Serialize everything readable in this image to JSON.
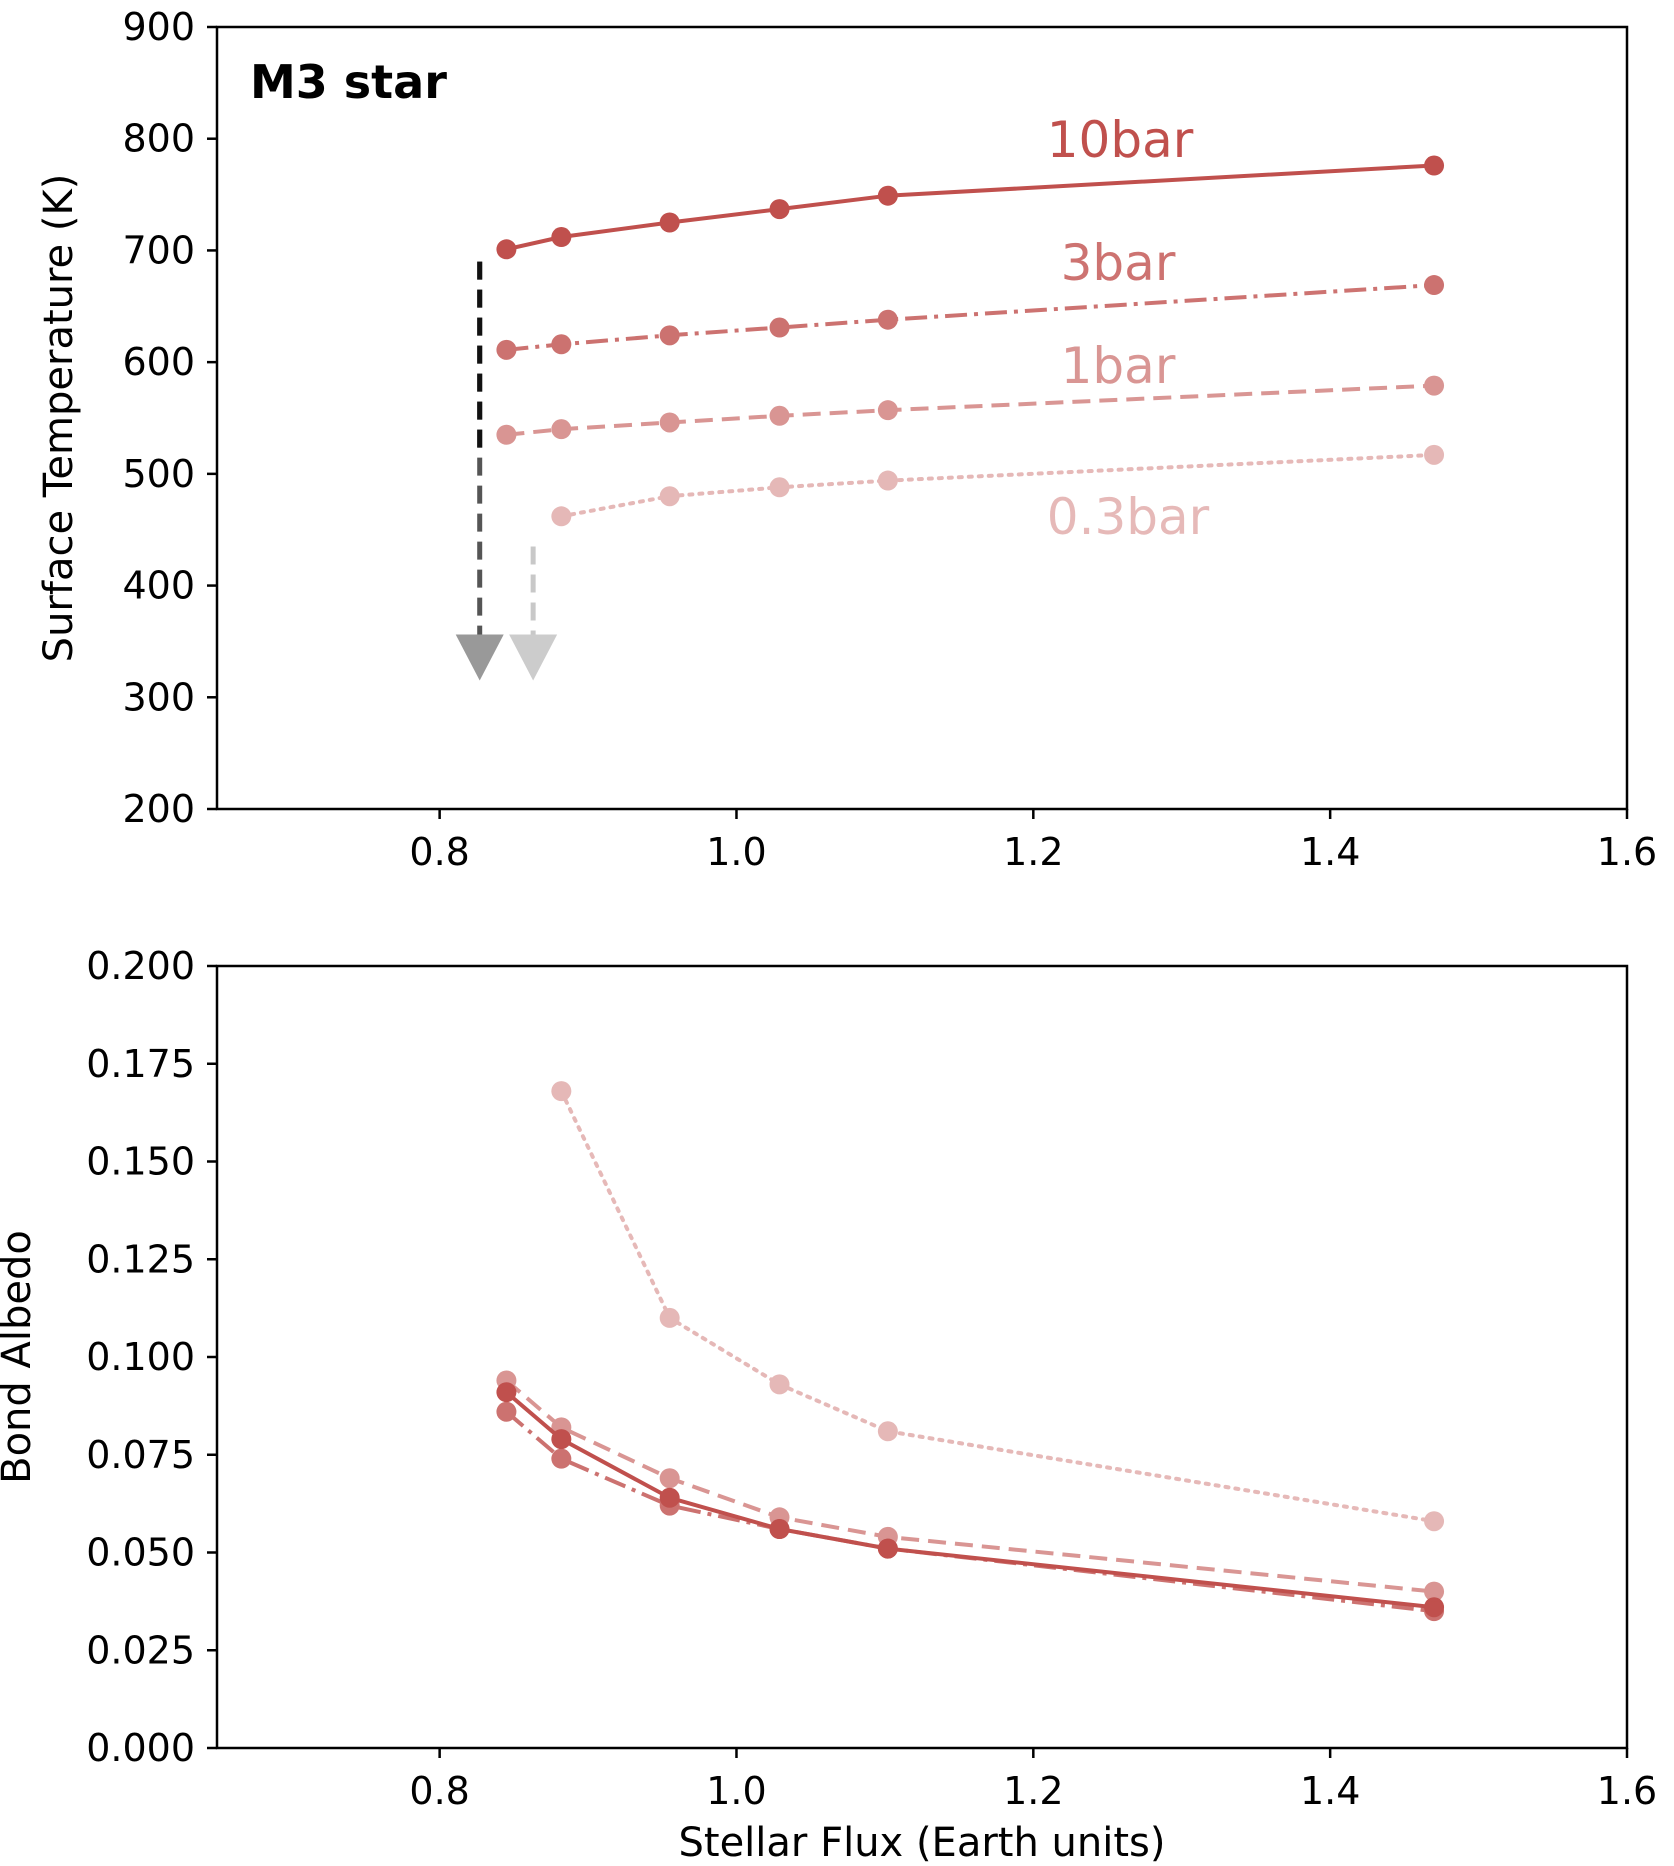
{
  "chart_data": [
    {
      "type": "line",
      "title": "M3 star",
      "xlabel": "",
      "ylabel": "Surface Temperature (K)",
      "xlim": [
        0.65,
        1.6
      ],
      "ylim": [
        200,
        900
      ],
      "xticks": [
        "0.8",
        "1.0",
        "1.2",
        "1.4",
        "1.6"
      ],
      "yticks": [
        "200",
        "300",
        "400",
        "500",
        "600",
        "700",
        "800",
        "900"
      ],
      "series": [
        {
          "name": "10bar",
          "label": "10bar",
          "color": "#c0504d",
          "alpha": 1.0,
          "dash": "solid",
          "x": [
            0.845,
            0.882,
            0.955,
            1.029,
            1.102,
            1.47
          ],
          "y": [
            701,
            712,
            725,
            737,
            749,
            776
          ]
        },
        {
          "name": "3bar",
          "label": "3bar",
          "color": "#c0504d",
          "alpha": 0.8,
          "dash": "dashdot",
          "x": [
            0.845,
            0.882,
            0.955,
            1.029,
            1.102,
            1.47
          ],
          "y": [
            611,
            616,
            624,
            631,
            638,
            669
          ]
        },
        {
          "name": "1bar",
          "label": "1bar",
          "color": "#c0504d",
          "alpha": 0.6,
          "dash": "dashed",
          "x": [
            0.845,
            0.882,
            0.955,
            1.029,
            1.102,
            1.47
          ],
          "y": [
            535,
            540,
            546,
            552,
            557,
            579
          ]
        },
        {
          "name": "0.3bar",
          "label": "0.3bar",
          "color": "#c0504d",
          "alpha": 0.4,
          "dash": "dotted",
          "x": [
            0.882,
            0.955,
            1.029,
            1.102,
            1.47
          ],
          "y": [
            462,
            480,
            488,
            494,
            517
          ]
        }
      ],
      "annotations": [
        {
          "type": "arrow",
          "from": [
            0.827,
            690
          ],
          "to": [
            0.827,
            315
          ],
          "color_start": "#000000",
          "color_end": "#999999"
        },
        {
          "type": "arrow",
          "from": [
            0.863,
            435
          ],
          "to": [
            0.863,
            315
          ],
          "color_start": "#c8c8c8",
          "color_end": "#cccccc"
        }
      ]
    },
    {
      "type": "line",
      "title": "",
      "xlabel": "Stellar Flux (Earth units)",
      "ylabel": "Bond Albedo",
      "xlim": [
        0.65,
        1.6
      ],
      "ylim": [
        0.0,
        0.2
      ],
      "xticks": [
        "0.8",
        "1.0",
        "1.2",
        "1.4",
        "1.6"
      ],
      "yticks": [
        "0.000",
        "0.025",
        "0.050",
        "0.075",
        "0.100",
        "0.125",
        "0.150",
        "0.175",
        "0.200"
      ],
      "series": [
        {
          "name": "10bar",
          "color": "#c0504d",
          "alpha": 1.0,
          "dash": "solid",
          "x": [
            0.845,
            0.882,
            0.955,
            1.029,
            1.102,
            1.47
          ],
          "y": [
            0.091,
            0.079,
            0.064,
            0.056,
            0.051,
            0.036
          ]
        },
        {
          "name": "3bar",
          "color": "#c0504d",
          "alpha": 0.8,
          "dash": "dashdot",
          "x": [
            0.845,
            0.882,
            0.955,
            1.029,
            1.102,
            1.47
          ],
          "y": [
            0.086,
            0.074,
            0.062,
            0.056,
            0.051,
            0.035
          ]
        },
        {
          "name": "1bar",
          "color": "#c0504d",
          "alpha": 0.6,
          "dash": "dashed",
          "x": [
            0.845,
            0.882,
            0.955,
            1.029,
            1.102,
            1.47
          ],
          "y": [
            0.094,
            0.082,
            0.069,
            0.059,
            0.054,
            0.04
          ]
        },
        {
          "name": "0.3bar",
          "color": "#c0504d",
          "alpha": 0.4,
          "dash": "dotted",
          "x": [
            0.882,
            0.955,
            1.029,
            1.102,
            1.47
          ],
          "y": [
            0.168,
            0.11,
            0.093,
            0.081,
            0.058
          ]
        }
      ]
    }
  ]
}
